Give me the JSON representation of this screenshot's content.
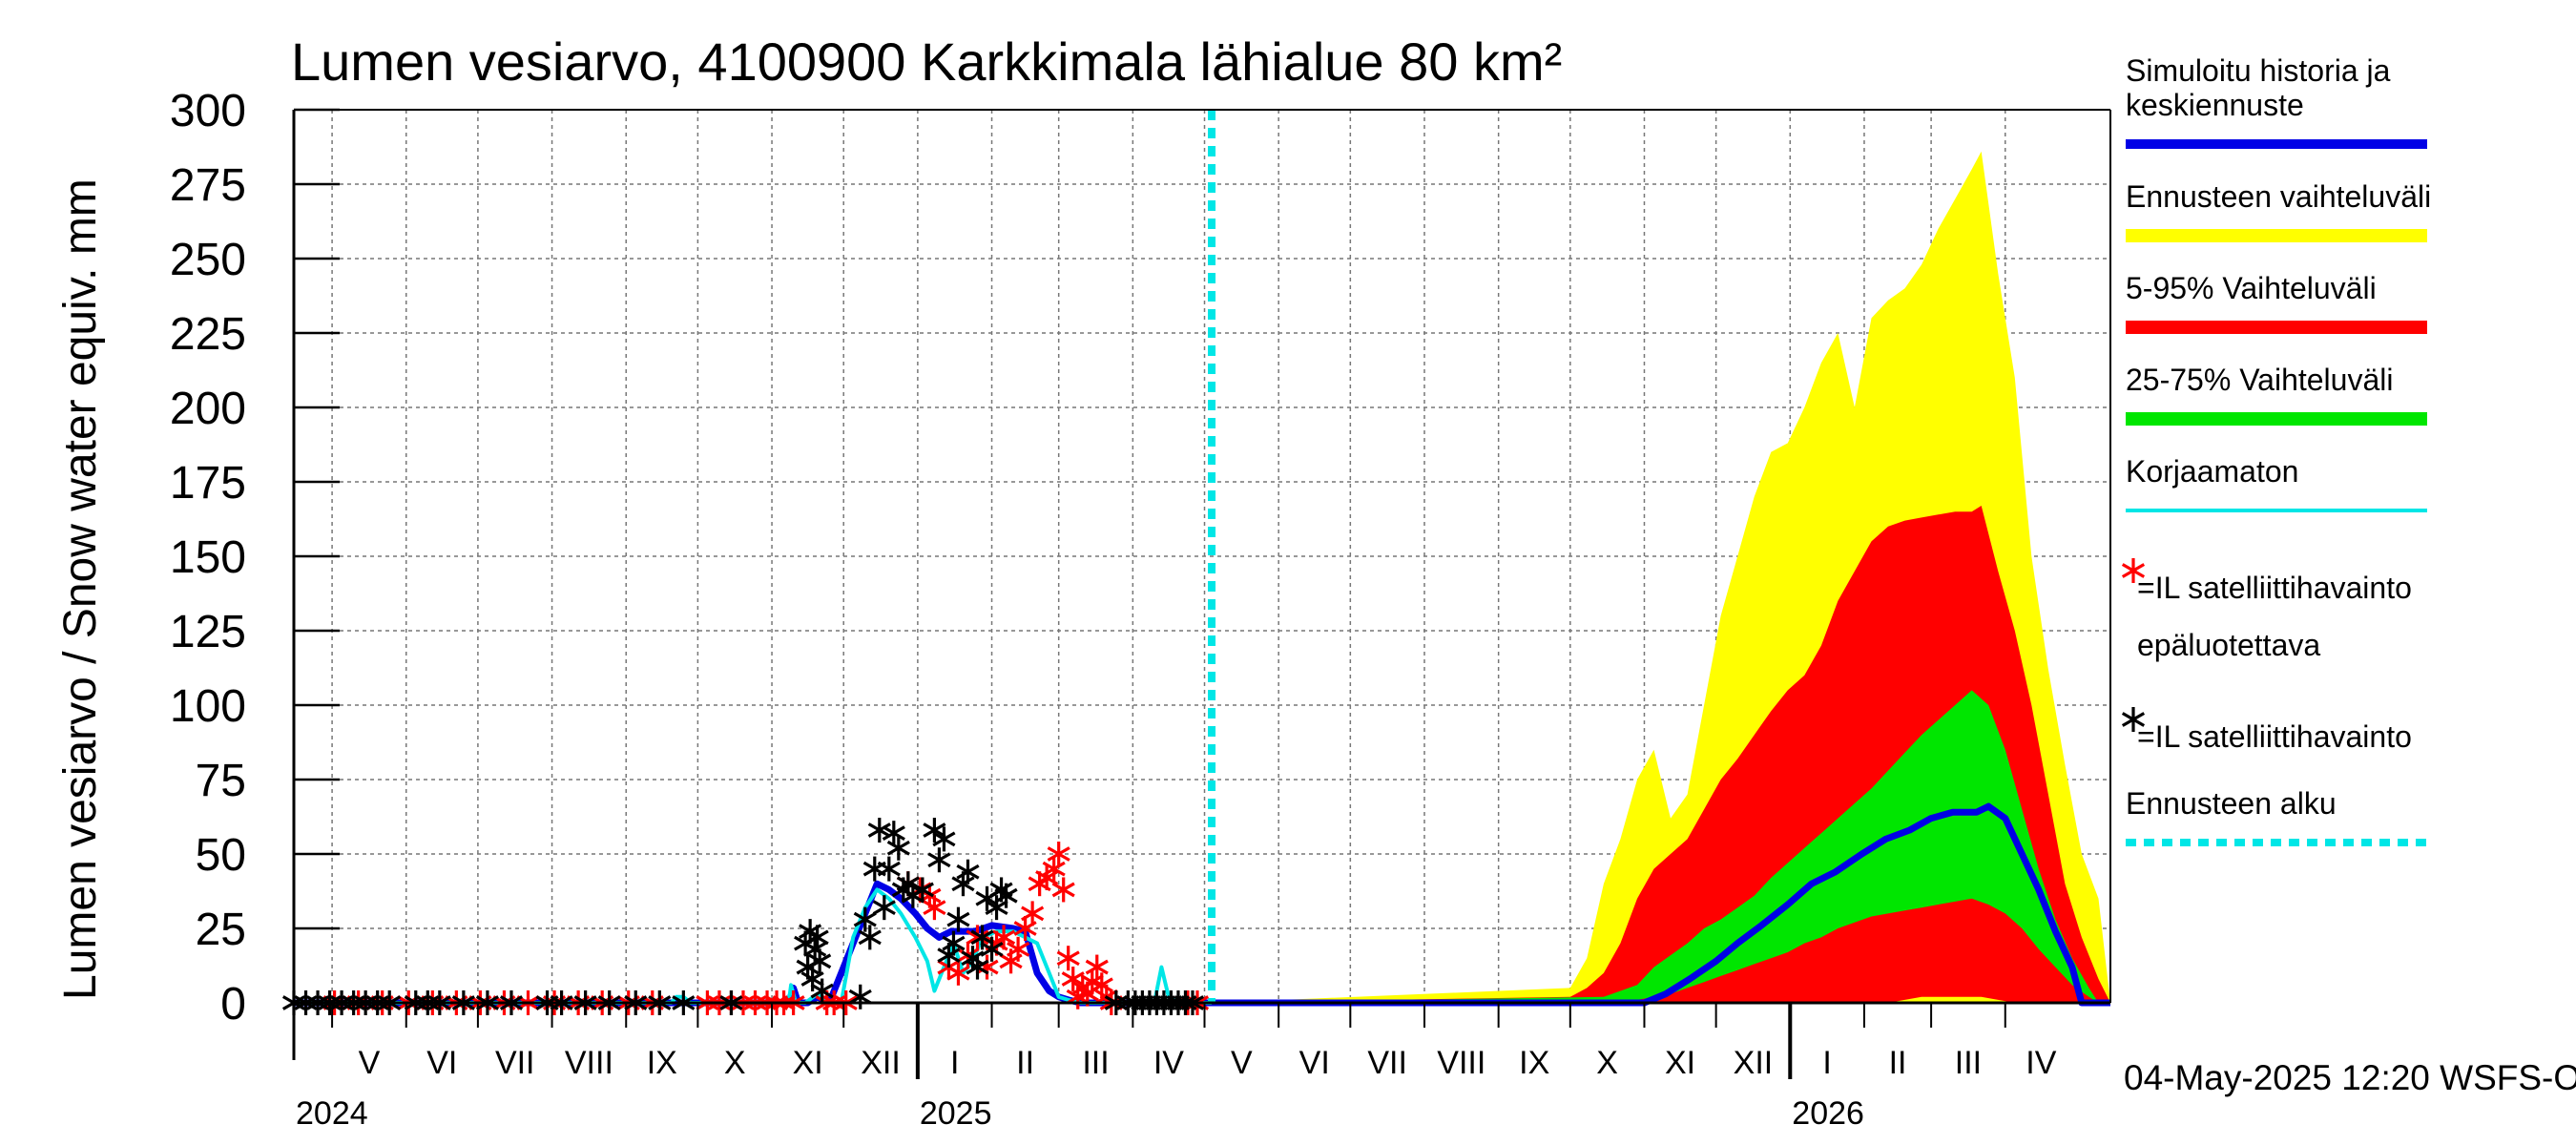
{
  "chart_data": {
    "type": "area",
    "title": "Lumen vesiarvo, 4100900 Karkkimala lähialue 80 km²",
    "ylabel": "Lumen vesiarvo / Snow water equiv.    mm",
    "ylim": [
      0,
      300
    ],
    "yticks": [
      "0",
      "25",
      "50",
      "75",
      "100",
      "125",
      "150",
      "175",
      "200",
      "225",
      "250",
      "275",
      "300"
    ],
    "xlim": [
      "2024-04-15",
      "2026-05-15"
    ],
    "months": [
      {
        "label": "V",
        "start": "2024-05-01",
        "end": "2024-06-01"
      },
      {
        "label": "VI",
        "start": "2024-06-01",
        "end": "2024-07-01"
      },
      {
        "label": "VII",
        "start": "2024-07-01",
        "end": "2024-08-01"
      },
      {
        "label": "VIII",
        "start": "2024-08-01",
        "end": "2024-09-01"
      },
      {
        "label": "IX",
        "start": "2024-09-01",
        "end": "2024-10-01"
      },
      {
        "label": "X",
        "start": "2024-10-01",
        "end": "2024-11-01"
      },
      {
        "label": "XI",
        "start": "2024-11-01",
        "end": "2024-12-01"
      },
      {
        "label": "XII",
        "start": "2024-12-01",
        "end": "2025-01-01"
      },
      {
        "label": "I",
        "start": "2025-01-01",
        "end": "2025-02-01"
      },
      {
        "label": "II",
        "start": "2025-02-01",
        "end": "2025-03-01"
      },
      {
        "label": "III",
        "start": "2025-03-01",
        "end": "2025-04-01"
      },
      {
        "label": "IV",
        "start": "2025-04-01",
        "end": "2025-05-01"
      },
      {
        "label": "V",
        "start": "2025-05-01",
        "end": "2025-06-01"
      },
      {
        "label": "VI",
        "start": "2025-06-01",
        "end": "2025-07-01"
      },
      {
        "label": "VII",
        "start": "2025-07-01",
        "end": "2025-08-01"
      },
      {
        "label": "VIII",
        "start": "2025-08-01",
        "end": "2025-09-01"
      },
      {
        "label": "IX",
        "start": "2025-09-01",
        "end": "2025-10-01"
      },
      {
        "label": "X",
        "start": "2025-10-01",
        "end": "2025-11-01"
      },
      {
        "label": "XI",
        "start": "2025-11-01",
        "end": "2025-12-01"
      },
      {
        "label": "XII",
        "start": "2025-12-01",
        "end": "2026-01-01"
      },
      {
        "label": "I",
        "start": "2026-01-01",
        "end": "2026-02-01"
      },
      {
        "label": "II",
        "start": "2026-02-01",
        "end": "2026-03-01"
      },
      {
        "label": "III",
        "start": "2026-03-01",
        "end": "2026-04-01"
      },
      {
        "label": "IV",
        "start": "2026-04-01",
        "end": "2026-05-01"
      }
    ],
    "years": [
      {
        "label": "2024",
        "date": "2024-04-15"
      },
      {
        "label": "2025",
        "date": "2025-01-01"
      },
      {
        "label": "2026",
        "date": "2026-01-01"
      }
    ],
    "year_boundaries": [
      "2025-01-01",
      "2026-01-01"
    ],
    "forecast_start": "2025-05-04",
    "legend_placement": "right",
    "legend": [
      {
        "label": "Simuloitu historia ja keskiennuste",
        "lines": [
          "Simuloitu historia ja",
          "keskiennuste"
        ],
        "color": "#0000e6",
        "kind": "line"
      },
      {
        "label": "Ennusteen vaihteluväli",
        "color": "#ffff00",
        "kind": "band"
      },
      {
        "label": "5-95% Vaihteluväli",
        "color": "#ff0000",
        "kind": "band"
      },
      {
        "label": "25-75% Vaihteluväli",
        "color": "#00e600",
        "kind": "band"
      },
      {
        "label": "Korjaamaton",
        "color": "#00e6e6",
        "kind": "thin"
      },
      {
        "label": "=IL satelliittihavainto epäluotettava",
        "lines": [
          "=IL satelliittihavainto",
          "epäluotettava"
        ],
        "color": "#ff0000",
        "kind": "star"
      },
      {
        "label": "=IL satelliittihavainto",
        "color": "#000000",
        "kind": "star"
      },
      {
        "label": "Ennusteen alku",
        "color": "#00e6e6",
        "kind": "dashed"
      }
    ],
    "footer": "04-May-2025 12:20 WSFS-O",
    "series": [
      {
        "name": "Ennusteen vaihteluväli",
        "kind": "band",
        "color": "#ffff00",
        "x": [
          "2025-05-04",
          "2025-10-01",
          "2025-10-08",
          "2025-10-15",
          "2025-10-22",
          "2025-10-29",
          "2025-11-05",
          "2025-11-12",
          "2025-11-19",
          "2025-11-26",
          "2025-12-03",
          "2025-12-10",
          "2025-12-17",
          "2025-12-24",
          "2025-12-31",
          "2026-01-07",
          "2026-01-14",
          "2026-01-21",
          "2026-01-28",
          "2026-02-04",
          "2026-02-11",
          "2026-02-18",
          "2026-02-25",
          "2026-03-04",
          "2026-03-11",
          "2026-03-18",
          "2026-03-22",
          "2026-03-29",
          "2026-04-05",
          "2026-04-12",
          "2026-04-19",
          "2026-04-26",
          "2026-05-03",
          "2026-05-10",
          "2026-05-15"
        ],
        "low": [
          0,
          0,
          0,
          0,
          0,
          0,
          0,
          0,
          0,
          0,
          0,
          0,
          0,
          0,
          0,
          0,
          0,
          0,
          0,
          0,
          0,
          0,
          0,
          0,
          0,
          0,
          0,
          0,
          0,
          0,
          0,
          0,
          0,
          0,
          0
        ],
        "high": [
          0,
          5,
          15,
          40,
          55,
          75,
          85,
          62,
          70,
          100,
          130,
          150,
          170,
          185,
          188,
          200,
          215,
          225,
          200,
          230,
          236,
          240,
          248,
          260,
          270,
          280,
          286,
          245,
          210,
          150,
          112,
          80,
          50,
          35,
          0
        ]
      },
      {
        "name": "5-95% Vaihteluväli",
        "kind": "band",
        "color": "#ff0000",
        "x": [
          "2025-05-04",
          "2025-10-01",
          "2025-10-08",
          "2025-10-15",
          "2025-10-22",
          "2025-10-29",
          "2025-11-05",
          "2025-11-12",
          "2025-11-19",
          "2025-11-26",
          "2025-12-03",
          "2025-12-10",
          "2025-12-17",
          "2025-12-24",
          "2025-12-31",
          "2026-01-07",
          "2026-01-14",
          "2026-01-21",
          "2026-01-28",
          "2026-02-04",
          "2026-02-11",
          "2026-02-18",
          "2026-02-25",
          "2026-03-04",
          "2026-03-11",
          "2026-03-18",
          "2026-03-22",
          "2026-03-29",
          "2026-04-05",
          "2026-04-12",
          "2026-04-19",
          "2026-04-26",
          "2026-05-03",
          "2026-05-10",
          "2026-05-15"
        ],
        "low": [
          0,
          0,
          0,
          0,
          0,
          0,
          0,
          0,
          0,
          0,
          0,
          0,
          0,
          0,
          0,
          0,
          0,
          0,
          0,
          0,
          0,
          1,
          2,
          2,
          2,
          2,
          2,
          1,
          0,
          0,
          0,
          0,
          0,
          0,
          0
        ],
        "high": [
          0,
          2,
          5,
          10,
          20,
          35,
          45,
          50,
          55,
          65,
          75,
          82,
          90,
          98,
          105,
          110,
          120,
          135,
          145,
          155,
          160,
          162,
          163,
          164,
          165,
          165,
          167,
          145,
          125,
          100,
          70,
          40,
          22,
          8,
          0
        ]
      },
      {
        "name": "25-75% Vaihteluväli",
        "kind": "band",
        "color": "#00e600",
        "x": [
          "2025-05-04",
          "2025-10-15",
          "2025-10-29",
          "2025-11-05",
          "2025-11-12",
          "2025-11-19",
          "2025-11-26",
          "2025-12-03",
          "2025-12-10",
          "2025-12-17",
          "2025-12-24",
          "2025-12-31",
          "2026-01-07",
          "2026-01-14",
          "2026-01-21",
          "2026-01-28",
          "2026-02-04",
          "2026-02-11",
          "2026-02-18",
          "2026-02-25",
          "2026-03-04",
          "2026-03-11",
          "2026-03-18",
          "2026-03-25",
          "2026-04-01",
          "2026-04-08",
          "2026-04-15",
          "2026-04-22",
          "2026-04-29",
          "2026-05-06",
          "2026-05-10"
        ],
        "low": [
          0,
          0,
          1,
          2,
          3,
          5,
          7,
          9,
          11,
          13,
          15,
          17,
          20,
          22,
          25,
          27,
          29,
          30,
          31,
          32,
          33,
          34,
          35,
          33,
          30,
          25,
          18,
          12,
          6,
          2,
          0
        ],
        "high": [
          0,
          2,
          6,
          12,
          16,
          20,
          25,
          28,
          32,
          36,
          42,
          47,
          52,
          57,
          62,
          67,
          72,
          78,
          84,
          90,
          95,
          100,
          105,
          100,
          85,
          65,
          45,
          28,
          15,
          5,
          0
        ]
      },
      {
        "name": "Simuloitu historia ja keskiennuste",
        "kind": "line",
        "color": "#0000e6",
        "x": [
          "2024-04-15",
          "2024-11-08",
          "2024-11-10",
          "2024-11-12",
          "2024-11-14",
          "2024-11-16",
          "2024-11-20",
          "2024-11-25",
          "2024-12-05",
          "2024-12-10",
          "2024-12-15",
          "2024-12-20",
          "2024-12-25",
          "2024-12-31",
          "2025-01-05",
          "2025-01-10",
          "2025-01-15",
          "2025-01-20",
          "2025-01-25",
          "2025-02-01",
          "2025-02-10",
          "2025-02-15",
          "2025-02-20",
          "2025-02-25",
          "2025-03-01",
          "2025-03-05",
          "2025-03-10",
          "2025-03-15",
          "2025-05-04",
          "2025-11-01",
          "2025-11-10",
          "2025-11-20",
          "2025-12-01",
          "2025-12-10",
          "2025-12-20",
          "2025-12-31",
          "2026-01-10",
          "2026-01-20",
          "2026-01-31",
          "2026-02-10",
          "2026-02-20",
          "2026-03-01",
          "2026-03-10",
          "2026-03-20",
          "2026-03-25",
          "2026-04-01",
          "2026-04-08",
          "2026-04-15",
          "2026-04-22",
          "2026-04-29",
          "2026-05-03",
          "2026-05-15"
        ],
        "y": [
          0,
          0,
          5,
          0,
          0,
          0,
          2,
          0,
          20,
          30,
          40,
          38,
          35,
          30,
          25,
          22,
          24,
          24,
          24,
          26,
          25,
          24,
          10,
          4,
          2,
          1,
          0,
          0,
          0,
          0,
          3,
          8,
          14,
          20,
          26,
          33,
          40,
          44,
          50,
          55,
          58,
          62,
          64,
          64,
          66,
          62,
          50,
          38,
          24,
          12,
          0,
          0
        ]
      },
      {
        "name": "Korjaamaton",
        "kind": "thin",
        "color": "#00e6e6",
        "x": [
          "2024-04-15",
          "2024-09-20",
          "2024-09-22",
          "2024-09-25",
          "2024-09-28",
          "2024-11-08",
          "2024-11-09",
          "2024-11-11",
          "2024-11-13",
          "2024-11-15",
          "2024-11-20",
          "2024-11-25",
          "2024-11-30",
          "2024-12-05",
          "2024-12-10",
          "2024-12-15",
          "2024-12-20",
          "2024-12-25",
          "2024-12-31",
          "2025-01-05",
          "2025-01-08",
          "2025-01-12",
          "2025-01-16",
          "2025-01-20",
          "2025-01-24",
          "2025-01-28",
          "2025-02-03",
          "2025-02-10",
          "2025-02-15",
          "2025-02-20",
          "2025-02-25",
          "2025-03-01",
          "2025-03-05",
          "2025-03-10",
          "2025-04-10",
          "2025-04-13",
          "2025-04-16",
          "2025-04-20",
          "2025-05-04"
        ],
        "y": [
          0,
          0,
          2,
          2,
          0,
          0,
          6,
          0,
          0,
          0,
          3,
          0,
          0,
          22,
          32,
          38,
          35,
          30,
          22,
          14,
          4,
          12,
          20,
          10,
          14,
          22,
          24,
          24,
          22,
          20,
          10,
          2,
          1,
          0,
          0,
          12,
          2,
          0,
          0
        ]
      }
    ],
    "satellite_black": {
      "name": "=IL satelliittihavainto",
      "color": "#000000",
      "x": [
        "2024-04-15",
        "2024-04-20",
        "2024-04-25",
        "2024-04-30",
        "2024-05-05",
        "2024-05-10",
        "2024-05-15",
        "2024-05-20",
        "2024-05-25",
        "2024-06-05",
        "2024-06-10",
        "2024-06-15",
        "2024-06-25",
        "2024-07-05",
        "2024-07-15",
        "2024-07-30",
        "2024-08-05",
        "2024-08-15",
        "2024-08-25",
        "2024-09-05",
        "2024-09-15",
        "2024-09-25",
        "2024-10-15",
        "2024-11-15",
        "2024-11-16",
        "2024-11-17",
        "2024-11-18",
        "2024-11-19",
        "2024-11-20",
        "2024-11-21",
        "2024-11-22",
        "2024-12-08",
        "2024-12-10",
        "2024-12-12",
        "2024-12-14",
        "2024-12-16",
        "2024-12-18",
        "2024-12-20",
        "2024-12-22",
        "2024-12-24",
        "2024-12-26",
        "2024-12-28",
        "2024-12-30",
        "2025-01-03",
        "2025-01-08",
        "2025-01-10",
        "2025-01-12",
        "2025-01-14",
        "2025-01-16",
        "2025-01-18",
        "2025-01-20",
        "2025-01-22",
        "2025-01-24",
        "2025-01-26",
        "2025-01-28",
        "2025-01-30",
        "2025-02-01",
        "2025-02-03",
        "2025-02-05",
        "2025-02-07",
        "2025-03-25",
        "2025-03-30",
        "2025-04-02",
        "2025-04-05",
        "2025-04-08",
        "2025-04-11",
        "2025-04-14",
        "2025-04-17",
        "2025-04-20",
        "2025-04-23",
        "2025-04-26"
      ],
      "y": [
        0,
        0,
        0,
        0,
        0,
        0,
        0,
        0,
        0,
        0,
        0,
        0,
        0,
        0,
        0,
        0,
        0,
        0,
        0,
        0,
        0,
        0,
        0,
        20,
        12,
        24,
        8,
        18,
        22,
        14,
        4,
        2,
        28,
        22,
        45,
        58,
        32,
        45,
        57,
        52,
        38,
        40,
        36,
        38,
        58,
        48,
        55,
        16,
        20,
        28,
        40,
        44,
        15,
        12,
        22,
        35,
        18,
        32,
        38,
        36,
        0,
        0,
        0,
        0,
        0,
        0,
        0,
        0,
        0,
        0,
        0
      ]
    },
    "satellite_red": {
      "name": "=IL satelliittihavainto epäluotettava",
      "color": "#ff0000",
      "x": [
        "2024-05-02",
        "2024-05-12",
        "2024-05-22",
        "2024-06-02",
        "2024-06-12",
        "2024-06-22",
        "2024-07-02",
        "2024-07-12",
        "2024-07-22",
        "2024-08-02",
        "2024-08-12",
        "2024-08-22",
        "2024-09-02",
        "2024-09-12",
        "2024-10-05",
        "2024-10-10",
        "2024-10-15",
        "2024-10-20",
        "2024-10-25",
        "2024-10-30",
        "2024-11-03",
        "2024-11-06",
        "2024-11-10",
        "2024-11-24",
        "2024-11-27",
        "2024-12-02",
        "2024-12-28",
        "2025-01-02",
        "2025-01-06",
        "2025-01-08",
        "2025-01-14",
        "2025-01-18",
        "2025-01-22",
        "2025-01-26",
        "2025-01-30",
        "2025-02-03",
        "2025-02-06",
        "2025-02-09",
        "2025-02-12",
        "2025-02-15",
        "2025-02-18",
        "2025-02-21",
        "2025-02-24",
        "2025-02-27",
        "2025-03-01",
        "2025-03-03",
        "2025-03-05",
        "2025-03-07",
        "2025-03-09",
        "2025-03-11",
        "2025-03-13",
        "2025-03-15",
        "2025-03-17",
        "2025-03-19",
        "2025-03-21",
        "2025-03-23",
        "2025-04-24",
        "2025-04-28"
      ],
      "y": [
        0,
        0,
        0,
        0,
        0,
        0,
        0,
        0,
        0,
        0,
        0,
        0,
        0,
        0,
        0,
        0,
        0,
        0,
        0,
        0,
        0,
        0,
        0,
        0,
        0,
        0,
        40,
        38,
        36,
        32,
        12,
        10,
        16,
        22,
        12,
        20,
        22,
        14,
        18,
        25,
        30,
        40,
        42,
        45,
        50,
        38,
        15,
        8,
        2,
        5,
        3,
        7,
        12,
        6,
        2,
        0,
        0,
        0
      ]
    }
  }
}
